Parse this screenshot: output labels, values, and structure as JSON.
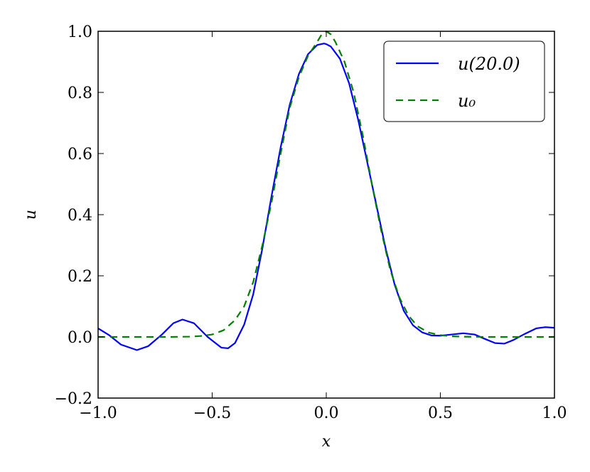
{
  "chart_data": {
    "type": "line",
    "title": "",
    "xlabel": "x",
    "ylabel": "u",
    "xlim": [
      -1.0,
      1.0
    ],
    "ylim": [
      -0.2,
      1.0
    ],
    "x_ticks": [
      "−1.0",
      "−0.5",
      "0.0",
      "0.5",
      "1.0"
    ],
    "x_tick_values": [
      -1.0,
      -0.5,
      0.0,
      0.5,
      1.0
    ],
    "y_ticks": [
      "−0.2",
      "0.0",
      "0.2",
      "0.4",
      "0.6",
      "0.8",
      "1.0"
    ],
    "y_tick_values": [
      -0.2,
      0.0,
      0.2,
      0.4,
      0.6,
      0.8,
      1.0
    ],
    "grid": false,
    "legend_position": "top-right",
    "series": [
      {
        "name": "u(20.0)",
        "color": "#0000ff",
        "style": "solid",
        "x": [
          -1.0,
          -0.95,
          -0.9,
          -0.83,
          -0.78,
          -0.72,
          -0.67,
          -0.63,
          -0.58,
          -0.52,
          -0.46,
          -0.43,
          -0.4,
          -0.36,
          -0.32,
          -0.28,
          -0.24,
          -0.2,
          -0.16,
          -0.12,
          -0.08,
          -0.04,
          -0.01,
          0.0,
          0.02,
          0.06,
          0.1,
          0.14,
          0.18,
          0.22,
          0.26,
          0.3,
          0.34,
          0.38,
          0.42,
          0.46,
          0.5,
          0.55,
          0.6,
          0.65,
          0.7,
          0.74,
          0.78,
          0.82,
          0.87,
          0.92,
          0.96,
          1.0
        ],
        "y": [
          0.028,
          0.005,
          -0.025,
          -0.043,
          -0.03,
          0.008,
          0.045,
          0.057,
          0.045,
          0.0,
          -0.035,
          -0.037,
          -0.02,
          0.04,
          0.14,
          0.29,
          0.46,
          0.62,
          0.76,
          0.86,
          0.925,
          0.955,
          0.96,
          0.958,
          0.95,
          0.91,
          0.83,
          0.71,
          0.57,
          0.43,
          0.29,
          0.17,
          0.085,
          0.038,
          0.015,
          0.005,
          0.004,
          0.008,
          0.012,
          0.008,
          -0.008,
          -0.02,
          -0.022,
          -0.01,
          0.01,
          0.028,
          0.032,
          0.03
        ]
      },
      {
        "name": "u₀",
        "color": "#008000",
        "style": "dashed",
        "x": [
          -1.0,
          -0.9,
          -0.8,
          -0.7,
          -0.6,
          -0.55,
          -0.5,
          -0.45,
          -0.4,
          -0.36,
          -0.32,
          -0.28,
          -0.24,
          -0.2,
          -0.16,
          -0.12,
          -0.08,
          -0.04,
          -0.02,
          0.0,
          0.02,
          0.04,
          0.08,
          0.12,
          0.16,
          0.2,
          0.24,
          0.28,
          0.32,
          0.36,
          0.4,
          0.45,
          0.5,
          0.55,
          0.6,
          0.7,
          0.8,
          0.9,
          1.0
        ],
        "y": [
          0.0,
          0.0,
          0.0,
          0.0,
          0.001,
          0.003,
          0.008,
          0.022,
          0.055,
          0.1,
          0.18,
          0.3,
          0.44,
          0.6,
          0.75,
          0.85,
          0.92,
          0.965,
          0.99,
          1.0,
          0.99,
          0.965,
          0.9,
          0.8,
          0.66,
          0.5,
          0.35,
          0.22,
          0.13,
          0.07,
          0.035,
          0.014,
          0.006,
          0.002,
          0.001,
          0.0,
          0.0,
          0.0,
          0.0
        ]
      }
    ]
  }
}
